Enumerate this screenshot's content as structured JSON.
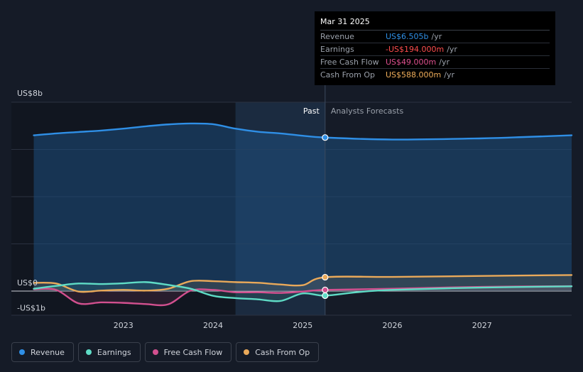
{
  "tooltip": {
    "date": "Mar 31 2025",
    "rows": [
      {
        "label": "Revenue",
        "value": "US$6.505b",
        "unit": "/yr",
        "color": "#2f8fe6"
      },
      {
        "label": "Earnings",
        "value": "-US$194.000m",
        "unit": "/yr",
        "color": "#ff4d4d"
      },
      {
        "label": "Free Cash Flow",
        "value": "US$49.000m",
        "unit": "/yr",
        "color": "#e0508f"
      },
      {
        "label": "Cash From Op",
        "value": "US$588.000m",
        "unit": "/yr",
        "color": "#f0ae5a"
      }
    ]
  },
  "labels": {
    "past": "Past",
    "forecast": "Analysts Forecasts"
  },
  "legend": [
    {
      "label": "Revenue",
      "color": "#2f8fe6"
    },
    {
      "label": "Earnings",
      "color": "#5fdcc6"
    },
    {
      "label": "Free Cash Flow",
      "color": "#d2508f"
    },
    {
      "label": "Cash From Op",
      "color": "#e9a95a"
    }
  ],
  "chart_data": {
    "type": "line",
    "y_unit": "US$ b",
    "ylim": [
      -1,
      8
    ],
    "y_tick_labels": [
      {
        "value": 8,
        "label": "US$8b"
      },
      {
        "value": 0,
        "label": "US$0"
      },
      {
        "value": -1,
        "label": "-US$1b"
      }
    ],
    "x_tick_labels": [
      {
        "value": 2023.0,
        "label": "2023"
      },
      {
        "value": 2024.0,
        "label": "2024"
      },
      {
        "value": 2025.0,
        "label": "2025"
      },
      {
        "value": 2026.0,
        "label": "2026"
      },
      {
        "value": 2027.0,
        "label": "2027"
      }
    ],
    "xlim": [
      2021.75,
      2028.0
    ],
    "past_end": 2025.25,
    "highlight_start": 2024.25,
    "series": [
      {
        "name": "Revenue",
        "color": "#2f8fe6",
        "points": [
          [
            2022.0,
            6.6
          ],
          [
            2022.25,
            6.68
          ],
          [
            2022.5,
            6.74
          ],
          [
            2022.75,
            6.8
          ],
          [
            2023.0,
            6.88
          ],
          [
            2023.25,
            6.98
          ],
          [
            2023.5,
            7.06
          ],
          [
            2023.75,
            7.1
          ],
          [
            2024.0,
            7.07
          ],
          [
            2024.25,
            6.88
          ],
          [
            2024.5,
            6.75
          ],
          [
            2024.75,
            6.68
          ],
          [
            2025.0,
            6.58
          ],
          [
            2025.25,
            6.505
          ],
          [
            2026.0,
            6.42
          ],
          [
            2027.0,
            6.47
          ],
          [
            2027.5,
            6.53
          ],
          [
            2028.0,
            6.6
          ]
        ]
      },
      {
        "name": "Earnings",
        "color": "#5fdcc6",
        "points": [
          [
            2022.0,
            0.1
          ],
          [
            2022.25,
            0.22
          ],
          [
            2022.5,
            0.32
          ],
          [
            2022.75,
            0.3
          ],
          [
            2023.0,
            0.33
          ],
          [
            2023.25,
            0.38
          ],
          [
            2023.5,
            0.26
          ],
          [
            2023.75,
            0.1
          ],
          [
            2024.0,
            -0.2
          ],
          [
            2024.25,
            -0.3
          ],
          [
            2024.5,
            -0.35
          ],
          [
            2024.75,
            -0.42
          ],
          [
            2025.0,
            -0.1
          ],
          [
            2025.25,
            -0.194
          ],
          [
            2025.6,
            -0.05
          ],
          [
            2026.0,
            0.05
          ],
          [
            2027.0,
            0.15
          ],
          [
            2028.0,
            0.2
          ]
        ]
      },
      {
        "name": "Free Cash Flow",
        "color": "#d2508f",
        "points": [
          [
            2022.0,
            0.08
          ],
          [
            2022.25,
            0.05
          ],
          [
            2022.5,
            -0.52
          ],
          [
            2022.75,
            -0.48
          ],
          [
            2023.0,
            -0.5
          ],
          [
            2023.25,
            -0.55
          ],
          [
            2023.5,
            -0.56
          ],
          [
            2023.75,
            0.02
          ],
          [
            2024.0,
            0.05
          ],
          [
            2024.25,
            -0.05
          ],
          [
            2024.5,
            -0.05
          ],
          [
            2024.75,
            -0.08
          ],
          [
            2025.0,
            -0.02
          ],
          [
            2025.25,
            0.049
          ],
          [
            2026.0,
            0.1
          ],
          [
            2027.0,
            0.18
          ],
          [
            2028.0,
            0.21
          ]
        ]
      },
      {
        "name": "Cash From Op",
        "color": "#e9a95a",
        "points": [
          [
            2022.0,
            0.35
          ],
          [
            2022.25,
            0.32
          ],
          [
            2022.5,
            -0.02
          ],
          [
            2022.75,
            0.02
          ],
          [
            2023.0,
            0.05
          ],
          [
            2023.25,
            0.02
          ],
          [
            2023.5,
            0.1
          ],
          [
            2023.75,
            0.42
          ],
          [
            2024.0,
            0.42
          ],
          [
            2024.25,
            0.38
          ],
          [
            2024.5,
            0.35
          ],
          [
            2024.75,
            0.28
          ],
          [
            2025.0,
            0.25
          ],
          [
            2025.25,
            0.588
          ],
          [
            2026.0,
            0.6
          ],
          [
            2027.0,
            0.64
          ],
          [
            2028.0,
            0.68
          ]
        ]
      }
    ]
  }
}
